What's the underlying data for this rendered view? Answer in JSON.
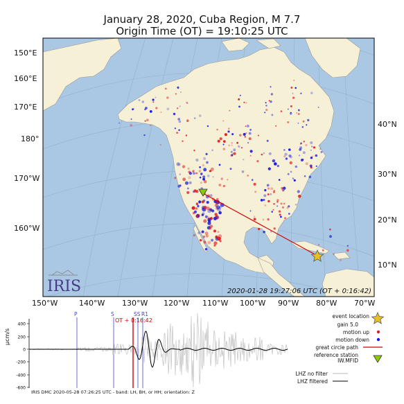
{
  "title": {
    "line1": "January 28, 2020, Cuba Region, M 7.7",
    "line2": "Origin Time (OT) = 19:10:25 UTC"
  },
  "map": {
    "timestamp": "2020-01-28 19:27:06 UTC (OT + 0:16:42)",
    "logo_text": "IRIS",
    "colors": {
      "ocean": "#aac8e4",
      "land": "#f6f0d6",
      "up": "#e02020",
      "down": "#1818e0",
      "path": "#d40000",
      "event": "#e8c020",
      "station": "#88cc00"
    },
    "left_labels": [
      "150°E",
      "160°E",
      "170°E",
      "180°",
      "170°W",
      "160°W"
    ],
    "right_labels": [
      "40°N",
      "30°N",
      "20°N",
      "10°N"
    ],
    "bottom_labels": [
      "150°W",
      "140°W",
      "130°W",
      "120°W",
      "110°W",
      "100°W",
      "90°W",
      "80°W",
      "70°W"
    ]
  },
  "seismogram": {
    "y_axis_label": "µcm/s",
    "y_ticks": [
      "400",
      "200",
      "0",
      "-200",
      "-400",
      "-600"
    ],
    "phase_labels": [
      "P",
      "S",
      "SS",
      "R1"
    ],
    "ot_label": "OT + 0:16:42",
    "footer": "IRIS DMC 2020-05-28 07:26:25 UTC - band: LH, BH, or HH; orientation: Z"
  },
  "legend": {
    "event_location": "event location",
    "gain": "gain  5.0",
    "motion_up": "motion up",
    "motion_down": "motion down",
    "great_circle": "great circle path",
    "reference_station": "reference station",
    "station_code": "IW.MFID",
    "no_filter": "LHZ no filter",
    "filtered": "LHZ filtered"
  }
}
